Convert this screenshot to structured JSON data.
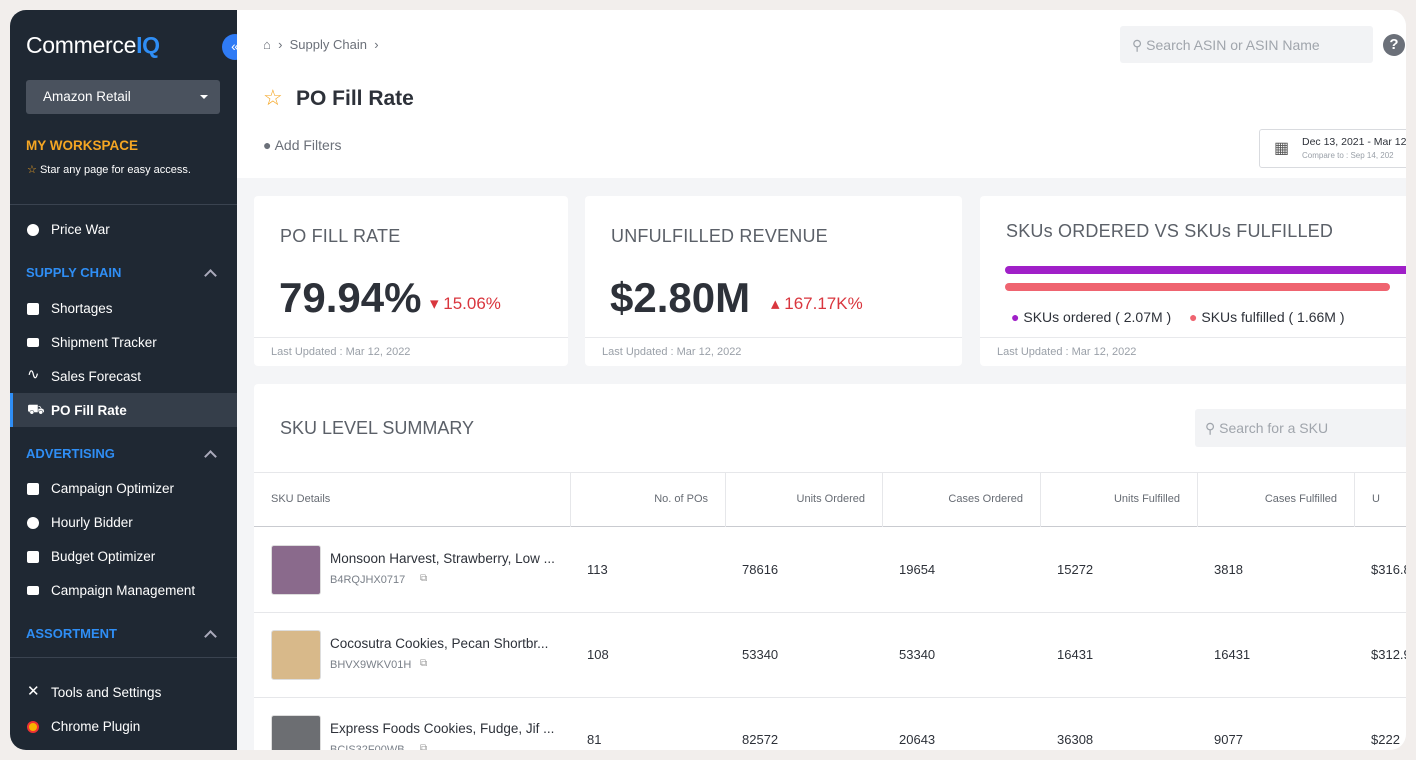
{
  "sidebar": {
    "logo": {
      "main": "Commerce",
      "accent": "IQ"
    },
    "account": "Amazon Retail",
    "workspace": {
      "title": "MY WORKSPACE",
      "hint": "Star any page for easy access."
    },
    "nav_top": "Price War",
    "sections": [
      {
        "title": "SUPPLY CHAIN",
        "items": [
          "Shortages",
          "Shipment Tracker",
          "Sales Forecast",
          "PO Fill Rate"
        ]
      },
      {
        "title": "ADVERTISING",
        "items": [
          "Campaign Optimizer",
          "Hourly Bidder",
          "Budget Optimizer",
          "Campaign Management"
        ]
      },
      {
        "title": "ASSORTMENT"
      }
    ],
    "footer": [
      "Tools and Settings",
      "Chrome Plugin"
    ]
  },
  "header": {
    "breadcrumb": "Supply Chain",
    "search_placeholder": "Search ASIN or ASIN Name",
    "title": "PO Fill Rate",
    "add_filters": "Add Filters",
    "date_range": "Dec 13, 2021 - Mar 12",
    "compare": "Compare to : Sep 14, 202"
  },
  "cards": [
    {
      "title": "PO FILL RATE",
      "value": "79.94%",
      "change": "15.06%",
      "updated": "Last Updated : Mar 12, 2022"
    },
    {
      "title": "UNFULFILLED REVENUE",
      "value": "$2.80M",
      "change": "167.17K%",
      "updated": "Last Updated : Mar 12, 2022"
    },
    {
      "title": "SKUs ORDERED VS SKUs FULFILLED",
      "legend": [
        "SKUs ordered ( 2.07M )",
        "SKUs fulfilled ( 1.66M )"
      ],
      "updated": "Last Updated : Mar 12, 2022"
    }
  ],
  "table": {
    "title": "SKU LEVEL SUMMARY",
    "search_placeholder": "Search for a SKU",
    "columns": [
      "SKU Details",
      "No. of POs",
      "Units Ordered",
      "Cases Ordered",
      "Units Fulfilled",
      "Cases Fulfilled",
      "U"
    ],
    "rows": [
      {
        "name": "Monsoon Harvest, Strawberry, Low ...",
        "asin": "B4RQJHX0717",
        "cells": [
          113,
          78616,
          19654,
          15272,
          3818,
          "$316.8"
        ]
      },
      {
        "name": "Cocosutra Cookies, Pecan Shortbr...",
        "asin": "BHVX9WKV01H",
        "cells": [
          108,
          53340,
          53340,
          16431,
          16431,
          "$312.9"
        ]
      },
      {
        "name": "Express Foods Cookies, Fudge, Jif ...",
        "asin": "BCIS32F00WB",
        "cells": [
          81,
          82572,
          20643,
          36308,
          9077,
          "$222"
        ]
      }
    ]
  }
}
